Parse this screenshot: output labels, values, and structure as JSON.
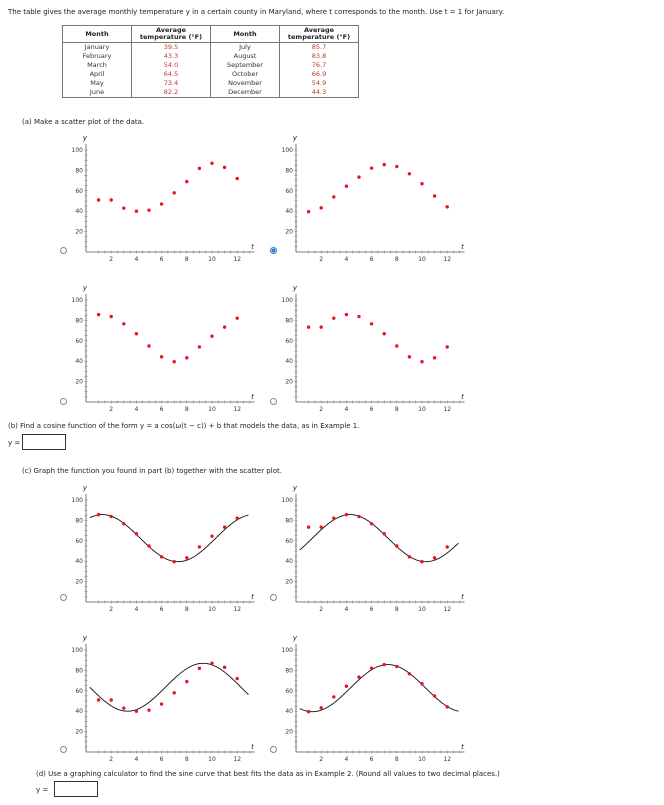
{
  "intro": "The table gives the average monthly temperature y in a certain county in Maryland, where t corresponds to the month. Use t = 1 for January.",
  "table": {
    "headers": [
      "Month",
      "Average temperature (°F)",
      "Month",
      "Average temperature (°F)"
    ],
    "rows": [
      [
        "January",
        "39.5",
        "July",
        "85.7"
      ],
      [
        "February",
        "43.3",
        "August",
        "83.8"
      ],
      [
        "March",
        "54.0",
        "September",
        "76.7"
      ],
      [
        "April",
        "64.5",
        "October",
        "66.9"
      ],
      [
        "May",
        "73.4",
        "November",
        "54.9"
      ],
      [
        "June",
        "82.2",
        "December",
        "44.3"
      ]
    ]
  },
  "part_a": "(a) Make a scatter plot of the data.",
  "part_b": "(b) Find a cosine function of the form  y = a cos(ω(t − c)) + b  that models the data, as in Example 1.",
  "part_c": "(c) Graph the function you found in part (b) together with the scatter plot.",
  "part_d": "(d) Use a graphing calculator to find the sine curve that best fits the data as in Example 2. (Round all values to two decimal places.)",
  "answer_label": "y =",
  "axis": {
    "x": "t",
    "y": "y"
  },
  "colors": {
    "points": "#e8141b",
    "curve": "#111111",
    "radio_selected": "#3a7bd5"
  },
  "chart_data": [
    {
      "type": "scatter",
      "option": "a1",
      "selected": false,
      "y": [
        51,
        51,
        43,
        40,
        41,
        47,
        58,
        69,
        82,
        87,
        83,
        72
      ],
      "xlim": [
        0,
        13
      ],
      "ylim": [
        0,
        105
      ],
      "xticks": [
        2,
        4,
        6,
        8,
        10,
        12
      ],
      "yticks": [
        20,
        40,
        60,
        80,
        100
      ],
      "curve": false
    },
    {
      "type": "scatter",
      "option": "a2",
      "selected": true,
      "y": [
        39.5,
        43.3,
        54.0,
        64.5,
        73.4,
        82.2,
        85.7,
        83.8,
        76.7,
        66.9,
        54.9,
        44.3
      ],
      "xlim": [
        0,
        13
      ],
      "ylim": [
        0,
        105
      ],
      "xticks": [
        2,
        4,
        6,
        8,
        10,
        12
      ],
      "yticks": [
        20,
        40,
        60,
        80,
        100
      ],
      "curve": false
    },
    {
      "type": "scatter",
      "option": "a3",
      "selected": false,
      "y": [
        85.7,
        83.8,
        76.7,
        66.9,
        54.9,
        44.3,
        39.5,
        43.3,
        54.0,
        64.5,
        73.4,
        82.2
      ],
      "xlim": [
        0,
        13
      ],
      "ylim": [
        0,
        105
      ],
      "xticks": [
        2,
        4,
        6,
        8,
        10,
        12
      ],
      "yticks": [
        20,
        40,
        60,
        80,
        100
      ],
      "curve": false
    },
    {
      "type": "scatter",
      "option": "a4",
      "selected": false,
      "y": [
        73.4,
        73.4,
        82.2,
        85.7,
        83.8,
        76.7,
        66.9,
        54.9,
        44.3,
        39.5,
        43.3,
        54.0
      ],
      "xlim": [
        0,
        13
      ],
      "ylim": [
        0,
        105
      ],
      "xticks": [
        2,
        4,
        6,
        8,
        10,
        12
      ],
      "yticks": [
        20,
        40,
        60,
        80,
        100
      ],
      "curve": false
    },
    {
      "type": "line",
      "option": "c1",
      "selected": false,
      "y": [
        85.7,
        83.8,
        76.7,
        66.9,
        54.9,
        44.3,
        39.5,
        43.3,
        54.0,
        64.5,
        73.4,
        82.2
      ],
      "xlim": [
        0,
        13
      ],
      "ylim": [
        0,
        105
      ],
      "xticks": [
        2,
        4,
        6,
        8,
        10,
        12
      ],
      "yticks": [
        20,
        40,
        60,
        80,
        100
      ],
      "curve": true,
      "curve_peak": 1.3
    },
    {
      "type": "line",
      "option": "c2",
      "selected": false,
      "y": [
        73.4,
        73.4,
        82.2,
        85.7,
        83.8,
        76.7,
        66.9,
        54.9,
        44.3,
        39.5,
        43.3,
        54.0
      ],
      "xlim": [
        0,
        13
      ],
      "ylim": [
        0,
        105
      ],
      "xticks": [
        2,
        4,
        6,
        8,
        10,
        12
      ],
      "yticks": [
        20,
        40,
        60,
        80,
        100
      ],
      "curve": true,
      "curve_peak": 4.3
    },
    {
      "type": "line",
      "option": "c3",
      "selected": false,
      "y": [
        51,
        51,
        43,
        40,
        41,
        47,
        58,
        69,
        82,
        87,
        83,
        72
      ],
      "xlim": [
        0,
        13
      ],
      "ylim": [
        0,
        105
      ],
      "xticks": [
        2,
        4,
        6,
        8,
        10,
        12
      ],
      "yticks": [
        20,
        40,
        60,
        80,
        100
      ],
      "curve": true,
      "curve_peak": 9.3
    },
    {
      "type": "line",
      "option": "c4",
      "selected": false,
      "y": [
        39.5,
        43.3,
        54.0,
        64.5,
        73.4,
        82.2,
        85.7,
        83.8,
        76.7,
        66.9,
        54.9,
        44.3
      ],
      "xlim": [
        0,
        13
      ],
      "ylim": [
        0,
        105
      ],
      "xticks": [
        2,
        4,
        6,
        8,
        10,
        12
      ],
      "yticks": [
        20,
        40,
        60,
        80,
        100
      ],
      "curve": true,
      "curve_peak": 7.3
    }
  ]
}
